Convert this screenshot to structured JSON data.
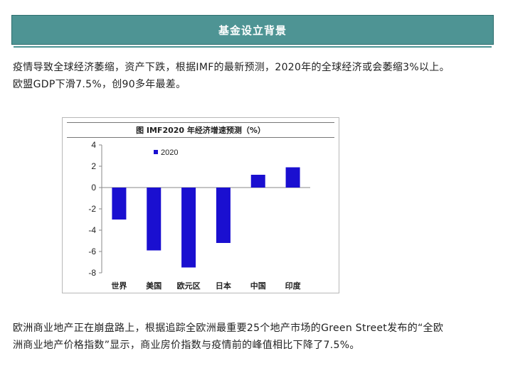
{
  "header": {
    "title": "基金设立背景"
  },
  "paragraphs": {
    "intro_line1": "疫情导致全球经济萎缩，资产下跌，根据IMF的最新预测，2020年的全球经济或会萎缩3%以上。",
    "intro_line2": "欧盟GDP下滑7.5%，创90多年最差。",
    "outro_line1": "欧洲商业地产正在崩盘路上，根据追踪全欧洲最重要25个地产市场的Green Street发布的“全欧",
    "outro_line2": "洲商业地产价格指数”显示，商业房价指数与疫情前的峰值相比下降了7.5%。"
  },
  "chart_data": {
    "type": "bar",
    "title": "图 IMF2020 年经济增速预测（%）",
    "categories": [
      "世界",
      "美国",
      "欧元区",
      "日本",
      "中国",
      "印度"
    ],
    "series": [
      {
        "name": "2020",
        "values": [
          -3.0,
          -5.9,
          -7.5,
          -5.2,
          1.2,
          1.9
        ]
      }
    ],
    "ylim": [
      -8,
      4
    ],
    "yticks": [
      4,
      2,
      0,
      -2,
      -4,
      -6,
      -8
    ],
    "grid": false,
    "legend": "top-left",
    "color": "#1a0fd0"
  }
}
